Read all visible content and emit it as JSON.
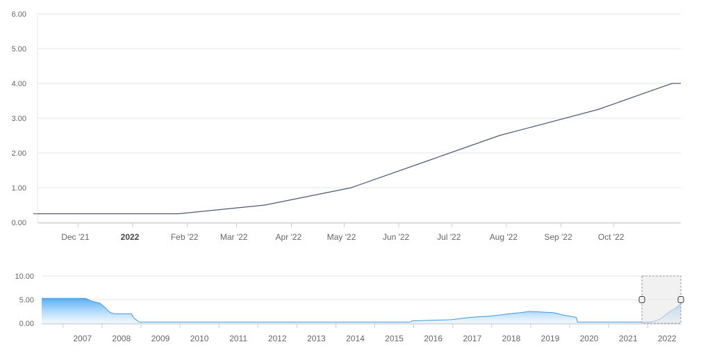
{
  "colors": {
    "main_line": "#4a5a78",
    "nav_line": "#3d9ae0",
    "nav_fill_top": "#3aa0f0",
    "nav_fill_bottom": "#e9f4ff",
    "grid": "#e6e6e6",
    "axis_text": "#666666",
    "selection_fill": "#e8e8e8",
    "selection_border": "#9a9a9a"
  },
  "chart_data": [
    {
      "type": "line",
      "title": "",
      "xlabel": "",
      "ylabel": "",
      "ylim": [
        0,
        6
      ],
      "y_ticks": [
        "0.00",
        "1.00",
        "2.00",
        "3.00",
        "4.00",
        "5.00",
        "6.00"
      ],
      "x_range": [
        "2021-11-08",
        "2022-11-08"
      ],
      "x_ticks": [
        {
          "date": "2021-12-01",
          "label": "Dec '21",
          "bold": false
        },
        {
          "date": "2022-01-01",
          "label": "2022",
          "bold": true
        },
        {
          "date": "2022-02-01",
          "label": "Feb '22",
          "bold": false
        },
        {
          "date": "2022-03-01",
          "label": "Mar '22",
          "bold": false
        },
        {
          "date": "2022-04-01",
          "label": "Apr '22",
          "bold": false
        },
        {
          "date": "2022-05-01",
          "label": "May '22",
          "bold": false
        },
        {
          "date": "2022-06-01",
          "label": "Jun '22",
          "bold": false
        },
        {
          "date": "2022-07-01",
          "label": "Jul '22",
          "bold": false
        },
        {
          "date": "2022-08-01",
          "label": "Aug '22",
          "bold": false
        },
        {
          "date": "2022-09-01",
          "label": "Sep '22",
          "bold": false
        },
        {
          "date": "2022-10-01",
          "label": "Oct '22",
          "bold": false
        }
      ],
      "grid": true,
      "series": [
        {
          "points": [
            {
              "x": "2021-11-08",
              "y": 0.25
            },
            {
              "x": "2022-01-27",
              "y": 0.25
            },
            {
              "x": "2022-03-17",
              "y": 0.5
            },
            {
              "x": "2022-05-05",
              "y": 1.0
            },
            {
              "x": "2022-06-16",
              "y": 1.75
            },
            {
              "x": "2022-07-28",
              "y": 2.5
            },
            {
              "x": "2022-09-22",
              "y": 3.25
            },
            {
              "x": "2022-11-03",
              "y": 4.0
            },
            {
              "x": "2022-11-08",
              "y": 4.0
            }
          ]
        }
      ]
    },
    {
      "type": "area",
      "title": "",
      "ylim": [
        0,
        10
      ],
      "y_ticks": [
        "0.00",
        "5.00",
        "10.00"
      ],
      "x_range": [
        "2006-06-15",
        "2022-11-08"
      ],
      "x_ticks": [
        {
          "date": "2007-01-01",
          "label": "2007"
        },
        {
          "date": "2008-01-01",
          "label": "2008"
        },
        {
          "date": "2009-01-01",
          "label": "2009"
        },
        {
          "date": "2010-01-01",
          "label": "2010"
        },
        {
          "date": "2011-01-01",
          "label": "2011"
        },
        {
          "date": "2012-01-01",
          "label": "2012"
        },
        {
          "date": "2013-01-01",
          "label": "2013"
        },
        {
          "date": "2014-01-01",
          "label": "2014"
        },
        {
          "date": "2015-01-01",
          "label": "2015"
        },
        {
          "date": "2016-01-01",
          "label": "2016"
        },
        {
          "date": "2017-01-01",
          "label": "2017"
        },
        {
          "date": "2018-01-01",
          "label": "2018"
        },
        {
          "date": "2019-01-01",
          "label": "2019"
        },
        {
          "date": "2020-01-01",
          "label": "2020"
        },
        {
          "date": "2021-01-01",
          "label": "2021"
        },
        {
          "date": "2022-01-01",
          "label": "2022"
        }
      ],
      "grid": true,
      "selection": [
        "2021-11-08",
        "2022-11-08"
      ],
      "series": [
        {
          "points": [
            {
              "x": "2006-06-15",
              "y": 5.25
            },
            {
              "x": "2007-08-01",
              "y": 5.25
            },
            {
              "x": "2007-09-18",
              "y": 4.75
            },
            {
              "x": "2007-12-11",
              "y": 4.25
            },
            {
              "x": "2008-01-22",
              "y": 3.5
            },
            {
              "x": "2008-03-18",
              "y": 2.25
            },
            {
              "x": "2008-05-01",
              "y": 2.0
            },
            {
              "x": "2008-10-01",
              "y": 2.0
            },
            {
              "x": "2008-10-29",
              "y": 1.0
            },
            {
              "x": "2008-12-16",
              "y": 0.25
            },
            {
              "x": "2015-12-01",
              "y": 0.25
            },
            {
              "x": "2015-12-16",
              "y": 0.5
            },
            {
              "x": "2016-12-14",
              "y": 0.75
            },
            {
              "x": "2017-03-15",
              "y": 1.0
            },
            {
              "x": "2017-06-14",
              "y": 1.25
            },
            {
              "x": "2017-12-13",
              "y": 1.5
            },
            {
              "x": "2018-03-21",
              "y": 1.75
            },
            {
              "x": "2018-06-13",
              "y": 2.0
            },
            {
              "x": "2018-09-26",
              "y": 2.25
            },
            {
              "x": "2018-12-19",
              "y": 2.5
            },
            {
              "x": "2019-07-31",
              "y": 2.25
            },
            {
              "x": "2019-09-18",
              "y": 2.0
            },
            {
              "x": "2019-10-30",
              "y": 1.75
            },
            {
              "x": "2020-03-03",
              "y": 1.25
            },
            {
              "x": "2020-03-15",
              "y": 0.25
            },
            {
              "x": "2022-01-27",
              "y": 0.25
            },
            {
              "x": "2022-03-17",
              "y": 0.5
            },
            {
              "x": "2022-05-05",
              "y": 1.0
            },
            {
              "x": "2022-06-16",
              "y": 1.75
            },
            {
              "x": "2022-07-28",
              "y": 2.5
            },
            {
              "x": "2022-09-22",
              "y": 3.25
            },
            {
              "x": "2022-11-03",
              "y": 4.0
            },
            {
              "x": "2022-11-08",
              "y": 4.0
            }
          ]
        }
      ]
    }
  ]
}
